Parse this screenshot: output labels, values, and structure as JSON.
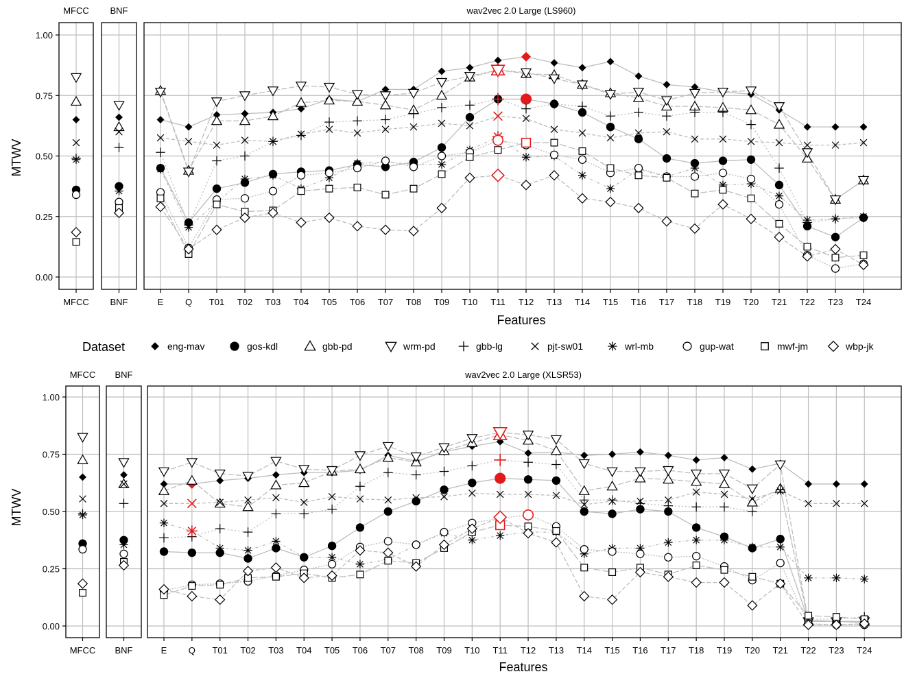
{
  "legend": {
    "title": "Dataset",
    "items": [
      {
        "name": "eng-mav",
        "marker": "diamond-filled"
      },
      {
        "name": "gos-kdl",
        "marker": "circle-filled"
      },
      {
        "name": "gbb-pd",
        "marker": "triangle-up"
      },
      {
        "name": "wrm-pd",
        "marker": "triangle-down"
      },
      {
        "name": "gbb-lg",
        "marker": "plus"
      },
      {
        "name": "pjt-sw01",
        "marker": "cross"
      },
      {
        "name": "wrl-mb",
        "marker": "asterisk"
      },
      {
        "name": "gup-wat",
        "marker": "circle-open"
      },
      {
        "name": "mwf-jm",
        "marker": "square-open"
      },
      {
        "name": "wbp-jk",
        "marker": "diamond-open"
      }
    ]
  },
  "colors": {
    "highlight": "#e31a1c",
    "line": "#bdbdbd",
    "grid": "#bdbdbd",
    "ink": "#000000"
  },
  "chart_data": [
    {
      "type": "line",
      "title": "wav2vec 2.0 Large (LS960)",
      "xlabel": "Features",
      "ylabel": "MTWV",
      "ylim": [
        0,
        1
      ],
      "yticks": [
        "0.00",
        "0.25",
        "0.50",
        "0.75",
        "1.00"
      ],
      "panels": [
        "MFCC",
        "BNF"
      ],
      "categories": [
        "E",
        "Q",
        "T01",
        "T02",
        "T03",
        "T04",
        "T05",
        "T06",
        "T07",
        "T08",
        "T09",
        "T10",
        "T11",
        "T12",
        "T13",
        "T14",
        "T15",
        "T16",
        "T17",
        "T18",
        "T19",
        "T20",
        "T21",
        "T22",
        "T23",
        "T24"
      ],
      "series": [
        {
          "name": "eng-mav",
          "mfcc": 0.65,
          "bnf": 0.66,
          "values": [
            0.65,
            0.62,
            0.67,
            0.675,
            0.68,
            0.695,
            0.735,
            0.725,
            0.775,
            0.775,
            0.85,
            0.865,
            0.895,
            0.91,
            0.885,
            0.865,
            0.89,
            0.83,
            0.795,
            0.785,
            0.765,
            0.755,
            0.69,
            0.62,
            0.62,
            0.62
          ],
          "best": 13
        },
        {
          "name": "gos-kdl",
          "mfcc": 0.36,
          "bnf": 0.375,
          "values": [
            0.45,
            0.225,
            0.365,
            0.39,
            0.425,
            0.435,
            0.44,
            0.465,
            0.455,
            0.475,
            0.535,
            0.66,
            0.735,
            0.735,
            0.715,
            0.68,
            0.62,
            0.57,
            0.49,
            0.47,
            0.48,
            0.485,
            0.38,
            0.21,
            0.165,
            0.245
          ],
          "best": 13
        },
        {
          "name": "gbb-pd",
          "mfcc": 0.725,
          "bnf": 0.62,
          "values": [
            0.77,
            0.44,
            0.645,
            0.645,
            0.665,
            0.72,
            0.73,
            0.725,
            0.71,
            0.69,
            0.75,
            0.825,
            0.855,
            0.84,
            0.835,
            0.795,
            0.76,
            0.74,
            0.705,
            0.705,
            0.7,
            0.69,
            0.63,
            0.49,
            0.32,
            0.4
          ],
          "best": 12
        },
        {
          "name": "wrm-pd",
          "mfcc": 0.825,
          "bnf": 0.71,
          "values": [
            0.765,
            0.435,
            0.725,
            0.75,
            0.77,
            0.79,
            0.785,
            0.755,
            0.75,
            0.76,
            0.805,
            0.83,
            0.855,
            0.845,
            0.82,
            0.795,
            0.755,
            0.765,
            0.73,
            0.76,
            0.765,
            0.77,
            0.705,
            0.515,
            0.32,
            0.4
          ],
          "best": 12
        },
        {
          "name": "gbb-lg",
          "mfcc": 0.49,
          "bnf": 0.535,
          "values": [
            0.515,
            0.215,
            0.48,
            0.5,
            0.56,
            0.585,
            0.64,
            0.645,
            0.65,
            0.675,
            0.7,
            0.71,
            0.735,
            0.695,
            0.715,
            0.705,
            0.665,
            0.68,
            0.665,
            0.68,
            0.68,
            0.63,
            0.45,
            0.225,
            0.24,
            0.245
          ],
          "best": 12
        },
        {
          "name": "pjt-sw01",
          "mfcc": 0.555,
          "bnf": 0.6,
          "values": [
            0.575,
            0.56,
            0.545,
            0.565,
            0.56,
            0.59,
            0.61,
            0.595,
            0.61,
            0.62,
            0.635,
            0.625,
            0.665,
            0.655,
            0.61,
            0.595,
            0.575,
            0.595,
            0.6,
            0.57,
            0.57,
            0.56,
            0.555,
            0.545,
            0.545,
            0.555
          ],
          "best": 12
        },
        {
          "name": "wrl-mb",
          "mfcc": 0.485,
          "bnf": 0.355,
          "values": [
            0.445,
            0.205,
            0.31,
            0.405,
            0.42,
            0.365,
            0.41,
            0.47,
            0.475,
            0.465,
            0.465,
            0.525,
            0.58,
            0.495,
            0.5,
            0.42,
            0.365,
            0.445,
            0.415,
            0.45,
            0.38,
            0.385,
            0.335,
            0.235,
            0.24,
            0.25
          ],
          "best": 12
        },
        {
          "name": "gup-wat",
          "mfcc": 0.34,
          "bnf": 0.31,
          "values": [
            0.35,
            0.12,
            0.32,
            0.325,
            0.355,
            0.42,
            0.43,
            0.45,
            0.48,
            0.455,
            0.5,
            0.515,
            0.565,
            0.545,
            0.505,
            0.485,
            0.43,
            0.45,
            0.415,
            0.415,
            0.43,
            0.405,
            0.3,
            0.09,
            0.035,
            0.055
          ],
          "best": 12
        },
        {
          "name": "mwf-jm",
          "mfcc": 0.145,
          "bnf": 0.285,
          "values": [
            0.325,
            0.095,
            0.3,
            0.27,
            0.275,
            0.355,
            0.365,
            0.37,
            0.34,
            0.365,
            0.425,
            0.495,
            0.525,
            0.555,
            0.555,
            0.52,
            0.45,
            0.42,
            0.41,
            0.345,
            0.36,
            0.325,
            0.22,
            0.125,
            0.08,
            0.09
          ],
          "best": 13
        },
        {
          "name": "wbp-jk",
          "mfcc": 0.185,
          "bnf": 0.265,
          "values": [
            0.29,
            0.115,
            0.195,
            0.245,
            0.265,
            0.225,
            0.245,
            0.21,
            0.195,
            0.19,
            0.285,
            0.41,
            0.42,
            0.38,
            0.42,
            0.325,
            0.31,
            0.285,
            0.23,
            0.2,
            0.3,
            0.24,
            0.165,
            0.085,
            0.115,
            0.05
          ],
          "best": 12
        }
      ]
    },
    {
      "type": "line",
      "title": "wav2vec 2.0 Large (XLSR53)",
      "xlabel": "Features",
      "ylabel": "MTWV",
      "ylim": [
        0,
        1
      ],
      "yticks": [
        "0.00",
        "0.25",
        "0.50",
        "0.75",
        "1.00"
      ],
      "panels": [
        "MFCC",
        "BNF"
      ],
      "categories": [
        "E",
        "Q",
        "T01",
        "T02",
        "T03",
        "T04",
        "T05",
        "T06",
        "T07",
        "T08",
        "T09",
        "T10",
        "T11",
        "T12",
        "T13",
        "T14",
        "T15",
        "T16",
        "T17",
        "T18",
        "T19",
        "T20",
        "T21",
        "T22",
        "T23",
        "T24"
      ],
      "series": [
        {
          "name": "eng-mav",
          "mfcc": 0.65,
          "bnf": 0.66,
          "values": [
            0.62,
            0.62,
            0.635,
            0.645,
            0.66,
            0.67,
            0.67,
            0.68,
            0.745,
            0.72,
            0.76,
            0.785,
            0.805,
            0.755,
            0.76,
            0.745,
            0.75,
            0.76,
            0.745,
            0.725,
            0.735,
            0.685,
            0.71,
            0.62,
            0.62,
            0.62
          ],
          "best": 1
        },
        {
          "name": "gos-kdl",
          "mfcc": 0.36,
          "bnf": 0.375,
          "values": [
            0.325,
            0.32,
            0.32,
            0.295,
            0.34,
            0.3,
            0.35,
            0.43,
            0.5,
            0.545,
            0.595,
            0.625,
            0.645,
            0.64,
            0.635,
            0.5,
            0.49,
            0.51,
            0.5,
            0.43,
            0.39,
            0.34,
            0.38,
            0.025,
            0.02,
            0.015
          ],
          "best": 12
        },
        {
          "name": "gbb-pd",
          "mfcc": 0.725,
          "bnf": 0.62,
          "values": [
            0.59,
            0.635,
            0.535,
            0.52,
            0.615,
            0.625,
            0.675,
            0.685,
            0.735,
            0.715,
            0.765,
            0.8,
            0.835,
            0.81,
            0.765,
            0.59,
            0.61,
            0.645,
            0.64,
            0.63,
            0.62,
            0.54,
            0.6,
            0.02,
            0.02,
            0.02
          ],
          "best": 12
        },
        {
          "name": "wrm-pd",
          "mfcc": 0.825,
          "bnf": 0.715,
          "values": [
            0.675,
            0.715,
            0.665,
            0.655,
            0.72,
            0.685,
            0.68,
            0.745,
            0.785,
            0.74,
            0.78,
            0.82,
            0.845,
            0.835,
            0.815,
            0.71,
            0.675,
            0.675,
            0.68,
            0.665,
            0.665,
            0.6,
            0.705,
            0.02,
            0.02,
            0.02
          ],
          "best": 12
        },
        {
          "name": "gbb-lg",
          "mfcc": 0.49,
          "bnf": 0.535,
          "values": [
            0.385,
            0.39,
            0.425,
            0.41,
            0.49,
            0.49,
            0.51,
            0.61,
            0.67,
            0.66,
            0.675,
            0.7,
            0.725,
            0.715,
            0.705,
            0.55,
            0.55,
            0.535,
            0.525,
            0.52,
            0.52,
            0.5,
            0.595,
            0.03,
            0.03,
            0.04
          ],
          "best": 12
        },
        {
          "name": "pjt-sw01",
          "mfcc": 0.555,
          "bnf": 0.62,
          "values": [
            0.535,
            0.535,
            0.54,
            0.55,
            0.56,
            0.54,
            0.565,
            0.555,
            0.55,
            0.56,
            0.565,
            0.58,
            0.575,
            0.575,
            0.57,
            0.53,
            0.545,
            0.545,
            0.55,
            0.585,
            0.575,
            0.555,
            0.59,
            0.535,
            0.535,
            0.535
          ],
          "best": 1
        },
        {
          "name": "wrl-mb",
          "mfcc": 0.485,
          "bnf": 0.355,
          "values": [
            0.45,
            0.415,
            0.34,
            0.33,
            0.37,
            0.3,
            0.3,
            0.27,
            0.29,
            0.355,
            0.405,
            0.375,
            0.395,
            0.41,
            0.41,
            0.315,
            0.34,
            0.34,
            0.365,
            0.375,
            0.375,
            0.345,
            0.345,
            0.21,
            0.21,
            0.205
          ],
          "best": 1
        },
        {
          "name": "gup-wat",
          "mfcc": 0.335,
          "bnf": 0.315,
          "values": [
            0.155,
            0.18,
            0.185,
            0.195,
            0.22,
            0.245,
            0.27,
            0.345,
            0.37,
            0.355,
            0.41,
            0.45,
            0.47,
            0.485,
            0.435,
            0.335,
            0.325,
            0.315,
            0.3,
            0.305,
            0.26,
            0.2,
            0.275,
            0.01,
            0.005,
            0.005
          ],
          "best": 13
        },
        {
          "name": "mwf-jm",
          "mfcc": 0.145,
          "bnf": 0.28,
          "values": [
            0.135,
            0.175,
            0.18,
            0.21,
            0.215,
            0.23,
            0.21,
            0.225,
            0.285,
            0.275,
            0.34,
            0.41,
            0.44,
            0.435,
            0.415,
            0.255,
            0.235,
            0.255,
            0.225,
            0.265,
            0.245,
            0.215,
            0.185,
            0.045,
            0.04,
            0.03
          ],
          "best": 12
        },
        {
          "name": "wbp-jk",
          "mfcc": 0.185,
          "bnf": 0.265,
          "values": [
            0.16,
            0.13,
            0.115,
            0.24,
            0.255,
            0.21,
            0.22,
            0.33,
            0.32,
            0.26,
            0.355,
            0.425,
            0.475,
            0.405,
            0.365,
            0.13,
            0.115,
            0.235,
            0.215,
            0.19,
            0.19,
            0.09,
            0.185,
            0.005,
            0.005,
            0.01
          ],
          "best": 12
        }
      ]
    }
  ]
}
